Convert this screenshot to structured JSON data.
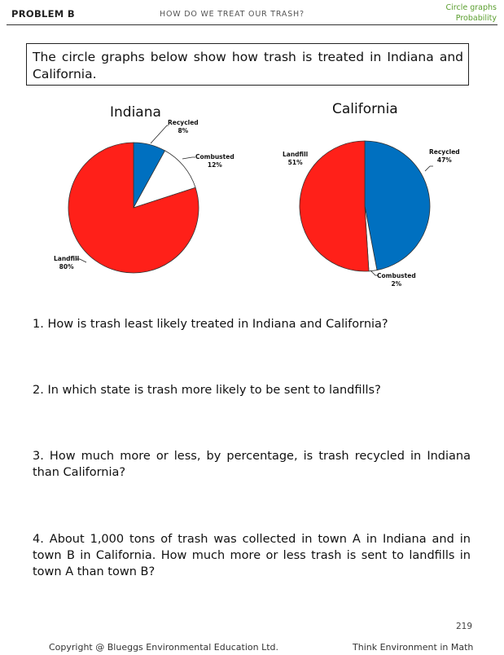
{
  "header": {
    "problem_label": "PROBLEM B",
    "topic": "HOW DO WE TREAT OUR TRASH?",
    "tag_line1": "Circle graphs",
    "tag_line2": "Probability"
  },
  "intro": "The circle graphs below show how trash is treated in Indiana and California.",
  "chart_data": [
    {
      "type": "pie",
      "title": "Indiana",
      "slices": [
        {
          "label": "Recycled",
          "value": 8,
          "display": "8%",
          "color": "#0070c0"
        },
        {
          "label": "Combusted",
          "value": 12,
          "display": "12%",
          "color": "#ffffff"
        },
        {
          "label": "Landfill",
          "value": 80,
          "display": "80%",
          "color": "#ff2019"
        }
      ]
    },
    {
      "type": "pie",
      "title": "California",
      "slices": [
        {
          "label": "Recycled",
          "value": 47,
          "display": "47%",
          "color": "#0070c0"
        },
        {
          "label": "Combusted",
          "value": 2,
          "display": "2%",
          "color": "#ffffff"
        },
        {
          "label": "Landfill",
          "value": 51,
          "display": "51%",
          "color": "#ff2019"
        }
      ]
    }
  ],
  "questions": [
    "1. How is trash least likely treated in Indiana and California?",
    "2. In which state is trash more likely to be sent to landfills?",
    "3. How much more or less, by percentage, is trash recycled in Indiana than California?",
    "4. About 1,000 tons of trash was collected in town A in Indiana and in town B in California. How much more or less trash is sent to landfills in town A than town B?"
  ],
  "footer": {
    "page_number": "219",
    "copyright": "Copyright @ Bluеggs Environmental Education Ltd.",
    "series": "Think Environment in Math"
  }
}
